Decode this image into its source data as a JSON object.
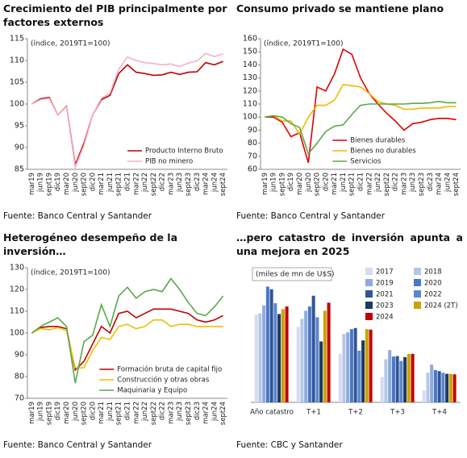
{
  "chart_data": [
    {
      "type": "line",
      "title": "Crecimiento del PIB principalmente por factores externos",
      "subtitle": "(índice, 2019T1=100)",
      "source": "Fuente: Banco Central y Santander",
      "categories": [
        "mar19",
        "jun19",
        "sept19",
        "dic19",
        "mar20",
        "jun20",
        "sept20",
        "dic20",
        "mar21",
        "jun21",
        "sept21",
        "dic21",
        "mar22",
        "jun22",
        "sept22",
        "dic22",
        "mar23",
        "jun23",
        "sept23",
        "dic23",
        "mar24",
        "jun24",
        "sept24"
      ],
      "series": [
        {
          "name": "Producto Interno Bruto",
          "color": "#c00000",
          "values": [
            100,
            101.2,
            101.5,
            97.5,
            99.5,
            86,
            91,
            97.5,
            101,
            102,
            107,
            109,
            107.3,
            107,
            106.6,
            106.7,
            107.3,
            106.8,
            107.3,
            107.4,
            109.5,
            109,
            109.8
          ]
        },
        {
          "name": "PIB no minero",
          "color": "#f2b3c6",
          "values": [
            100,
            101,
            101.3,
            97.5,
            99.4,
            85.5,
            90.5,
            97.5,
            101.3,
            102.5,
            108,
            110.8,
            110,
            109.5,
            109.3,
            109,
            109.2,
            108.6,
            109.4,
            109.9,
            111.6,
            110.9,
            111.5
          ]
        }
      ],
      "ylim": [
        85,
        115
      ],
      "yticks": [
        85,
        90,
        95,
        100,
        105,
        110,
        115
      ],
      "legend": "lower right"
    },
    {
      "type": "line",
      "title": "Consumo privado se mantiene plano",
      "subtitle": "(índice, 2019T1=100)",
      "source": "Fuente: Banco Central y Santander",
      "categories": [
        "mar19",
        "jun19",
        "sept19",
        "dic19",
        "mar20",
        "jun20",
        "sept20",
        "dic20",
        "mar21",
        "jun21",
        "sept21",
        "dic21",
        "mar22",
        "jun22",
        "sept22",
        "dic22",
        "mar23",
        "jun23",
        "sept23",
        "dic23",
        "mar24",
        "jun24",
        "sept24"
      ],
      "series": [
        {
          "name": "Bienes durables",
          "color": "#e00000",
          "values": [
            100,
            100,
            96,
            85,
            88,
            65,
            123,
            120,
            133,
            152,
            148,
            130,
            118,
            110,
            103,
            97,
            90,
            95,
            96,
            98,
            99,
            99,
            98
          ]
        },
        {
          "name": "Bienes no durables",
          "color": "#f5b800",
          "values": [
            100,
            101,
            97,
            97,
            87,
            100,
            109,
            109,
            113,
            125,
            124,
            123,
            118,
            112,
            110,
            109,
            106,
            106,
            107,
            107,
            107,
            108,
            108
          ]
        },
        {
          "name": "Servicios",
          "color": "#5aa84a",
          "values": [
            100,
            101,
            100,
            95,
            92,
            72,
            80,
            89,
            93,
            94,
            102,
            109,
            110,
            110,
            110,
            110,
            110,
            110.5,
            110.5,
            111,
            112,
            111,
            111
          ]
        }
      ],
      "ylim": [
        60,
        160
      ],
      "yticks": [
        60,
        70,
        80,
        90,
        100,
        110,
        120,
        130,
        140,
        150,
        160
      ],
      "legend": "lower right"
    },
    {
      "type": "line",
      "title": "Heterogéneo desempeño de la inversión…",
      "subtitle": "(índice, 2019T1=100)",
      "source": "Fuente: Banco Central y Santander",
      "categories": [
        "mar19",
        "jun19",
        "sept19",
        "dic19",
        "mar20",
        "jun20",
        "sept20",
        "dic20",
        "mar21",
        "jun21",
        "sept21",
        "dic21",
        "mar22",
        "jun22",
        "sept22",
        "dic22",
        "mar23",
        "jun23",
        "sept23",
        "dic23",
        "mar24",
        "jun24",
        "sept24"
      ],
      "series": [
        {
          "name": "Formación bruta de capital fijo",
          "color": "#c00000",
          "values": [
            100,
            102.5,
            103,
            103,
            102,
            83,
            87,
            95,
            103,
            100,
            109,
            110,
            107,
            109,
            111,
            111,
            111,
            110,
            109,
            106,
            105,
            106,
            108
          ]
        },
        {
          "name": "Construcción y otras obras",
          "color": "#f0c000",
          "values": [
            100,
            102,
            101.5,
            102.5,
            101,
            84,
            84,
            92,
            98,
            97,
            103,
            104,
            102,
            103,
            106,
            106,
            103,
            104,
            104,
            103,
            103,
            103,
            103
          ]
        },
        {
          "name": "Maquinaria y Equipo",
          "color": "#5aa84a",
          "values": [
            100,
            103,
            105,
            107,
            103,
            77,
            96,
            99,
            113,
            103,
            117,
            121,
            116,
            119,
            120,
            119,
            125,
            120,
            114,
            109,
            108,
            112,
            117
          ]
        }
      ],
      "ylim": [
        70,
        130
      ],
      "yticks": [
        70,
        80,
        90,
        100,
        110,
        120,
        130
      ],
      "legend": "lower right"
    },
    {
      "type": "bar",
      "title": "…pero catastro de inversión apunta a una mejora en 2025",
      "subtitle": "(miles de mn de U$S)",
      "source": "Fuente: CBC y Santander",
      "categories": [
        "Año catastro",
        "T+1",
        "T+2",
        "T+3",
        "T+4"
      ],
      "series": [
        {
          "name": "2017",
          "color": "#d5dcef",
          "values": [
            16.3,
            14,
            9,
            4.7,
            2.2
          ]
        },
        {
          "name": "2018",
          "color": "#b4c7e7",
          "values": [
            16.5,
            15.5,
            12.7,
            8,
            5.5
          ]
        },
        {
          "name": "2019",
          "color": "#8faadc",
          "values": [
            18,
            17,
            13,
            9.7,
            7
          ]
        },
        {
          "name": "2020",
          "color": "#4a78c8",
          "values": [
            21.5,
            17.8,
            13.6,
            8.5,
            6
          ]
        },
        {
          "name": "2021",
          "color": "#2f5597",
          "values": [
            21,
            19.8,
            13.8,
            8.6,
            5.8
          ]
        },
        {
          "name": "2022",
          "color": "#5b86cf",
          "values": [
            18.4,
            15.8,
            9.6,
            7.7,
            5.5
          ]
        },
        {
          "name": "2023",
          "color": "#1f3864",
          "values": [
            16.4,
            11.3,
            11.5,
            8.4,
            5.3
          ]
        },
        {
          "name": "2024 (2T)",
          "color": "#c9a400",
          "values": [
            17.3,
            17,
            13.6,
            9,
            5.3
          ]
        },
        {
          "name": "2024",
          "color": "#c00000",
          "values": [
            17.8,
            18.5,
            13.5,
            9,
            5.2
          ]
        }
      ],
      "ylim": [
        0,
        25
      ],
      "legend": "upper right"
    }
  ]
}
